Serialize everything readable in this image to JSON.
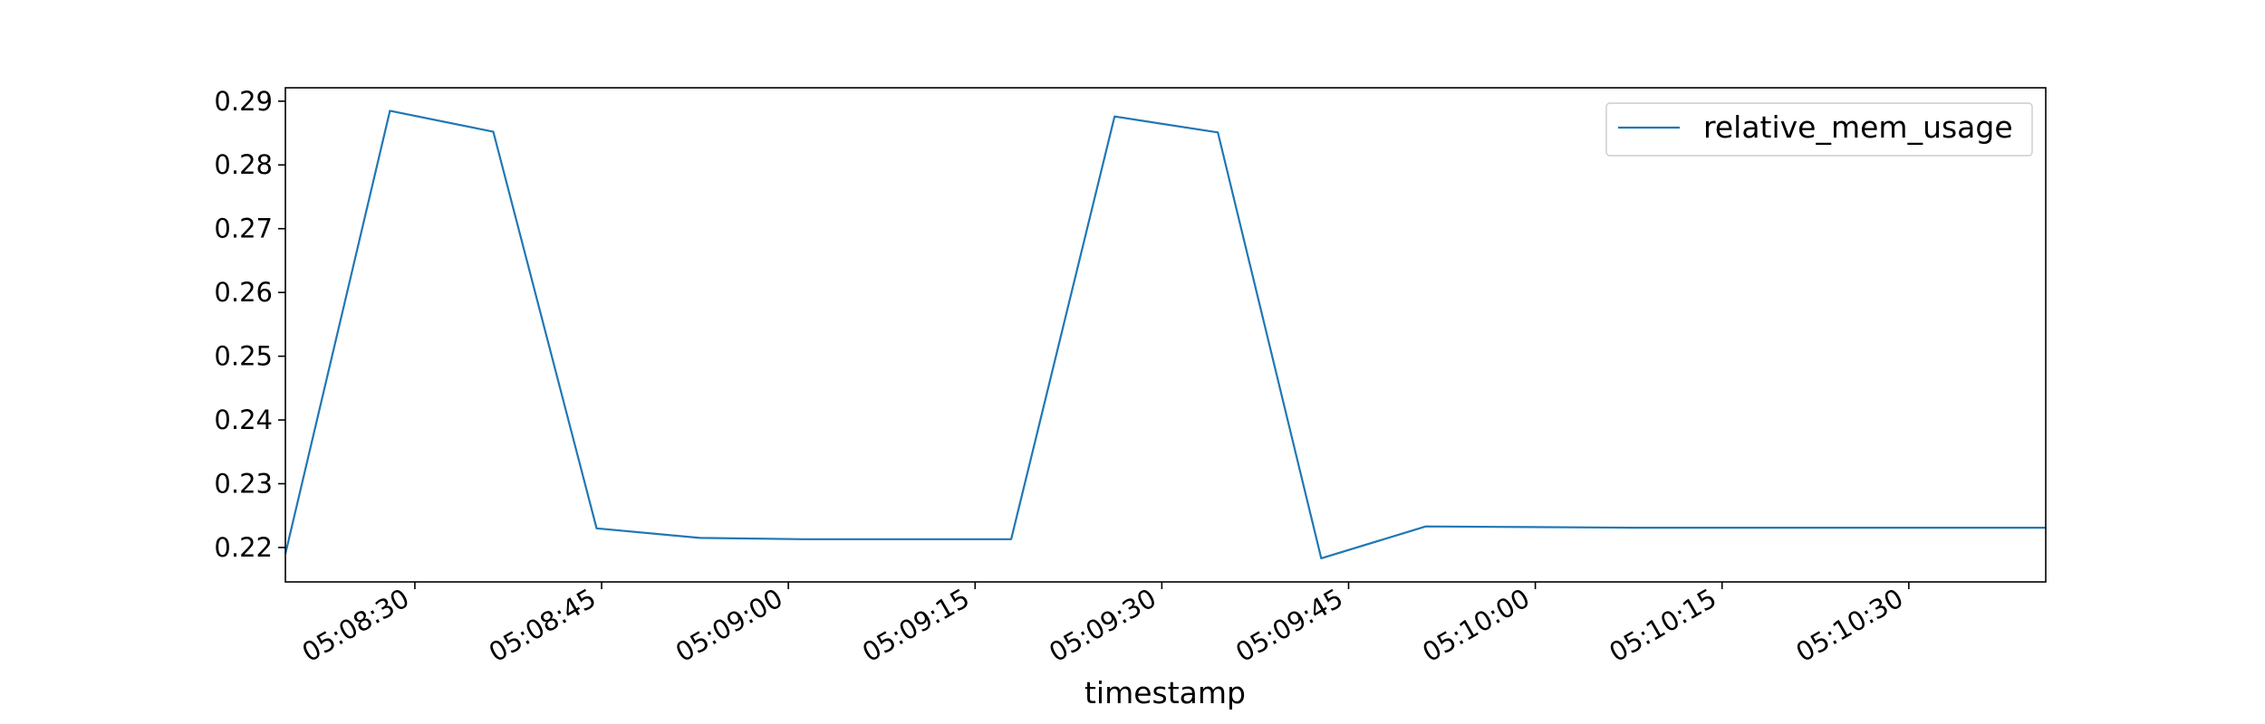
{
  "chart_data": {
    "type": "line",
    "title": "",
    "xlabel": "timestamp",
    "ylabel": "",
    "xlim": [
      "05:08:19.6",
      "05:10:41"
    ],
    "ylim": [
      0.2146,
      0.2921
    ],
    "x_ticks": [
      "05:08:30",
      "05:08:45",
      "05:09:00",
      "05:09:15",
      "05:09:30",
      "05:09:45",
      "05:10:00",
      "05:10:15",
      "05:10:30"
    ],
    "y_ticks": [
      "0.22",
      "0.23",
      "0.24",
      "0.25",
      "0.26",
      "0.27",
      "0.28",
      "0.29"
    ],
    "grid": false,
    "legend": "upper right",
    "series": [
      {
        "name": "relative_mem_usage",
        "color": "#1f77b4",
        "x": [
          "05:08:19.6",
          "05:08:28",
          "05:08:36.3",
          "05:08:44.6",
          "05:08:52.9",
          "05:09:01.2",
          "05:09:09.6",
          "05:09:17.9",
          "05:09:26.2",
          "05:09:34.5",
          "05:09:42.8",
          "05:09:51.2",
          "05:09:59.5",
          "05:10:07.8",
          "05:10:16.1",
          "05:10:24.4",
          "05:10:32.8",
          "05:10:41"
        ],
        "y": [
          0.219,
          0.2885,
          0.2852,
          0.223,
          0.2215,
          0.2213,
          0.2213,
          0.2213,
          0.2876,
          0.2851,
          0.2183,
          0.2233,
          0.2232,
          0.2231,
          0.2231,
          0.2231,
          0.2231,
          0.2231
        ]
      }
    ]
  }
}
